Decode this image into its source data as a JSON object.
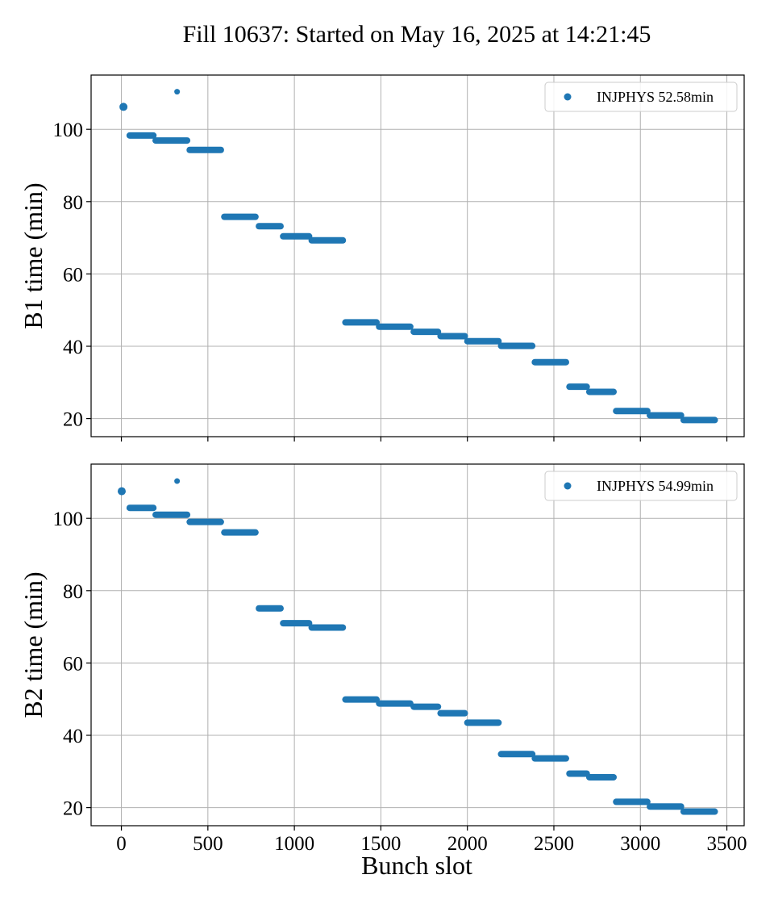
{
  "title": "Fill 10637: Started on May 16, 2025 at 14:21:45",
  "xlabel": "Bunch slot",
  "colors": {
    "series": "#1f77b4",
    "grid": "#b0b0b0",
    "axes": "#000000"
  },
  "chart_data": [
    {
      "type": "scatter",
      "ylabel": "B1 time (min)",
      "legend": "INJPHYS 52.58min",
      "legend_position": "top-right",
      "grid": true,
      "xlim": [
        -175,
        3600
      ],
      "ylim": [
        15,
        115
      ],
      "xticks": [
        0,
        500,
        1000,
        1500,
        2000,
        2500,
        3000,
        3500
      ],
      "yticks": [
        20,
        40,
        60,
        80,
        100
      ],
      "single_points": [
        {
          "x": 12,
          "y": 106.2
        },
        {
          "x": 322,
          "y": 110.4
        }
      ],
      "segments": [
        {
          "x0": 48,
          "x1": 185,
          "y": 98.3
        },
        {
          "x0": 198,
          "x1": 380,
          "y": 96.9
        },
        {
          "x0": 395,
          "x1": 575,
          "y": 94.3
        },
        {
          "x0": 595,
          "x1": 775,
          "y": 75.8
        },
        {
          "x0": 795,
          "x1": 920,
          "y": 73.2
        },
        {
          "x0": 935,
          "x1": 1085,
          "y": 70.4
        },
        {
          "x0": 1100,
          "x1": 1280,
          "y": 69.3
        },
        {
          "x0": 1295,
          "x1": 1475,
          "y": 46.6
        },
        {
          "x0": 1490,
          "x1": 1670,
          "y": 45.4
        },
        {
          "x0": 1690,
          "x1": 1830,
          "y": 44.0
        },
        {
          "x0": 1845,
          "x1": 1985,
          "y": 42.8
        },
        {
          "x0": 2000,
          "x1": 2180,
          "y": 41.4
        },
        {
          "x0": 2195,
          "x1": 2375,
          "y": 40.1
        },
        {
          "x0": 2390,
          "x1": 2570,
          "y": 35.6
        },
        {
          "x0": 2590,
          "x1": 2690,
          "y": 28.8
        },
        {
          "x0": 2705,
          "x1": 2845,
          "y": 27.4
        },
        {
          "x0": 2860,
          "x1": 3040,
          "y": 22.1
        },
        {
          "x0": 3055,
          "x1": 3235,
          "y": 20.9
        },
        {
          "x0": 3250,
          "x1": 3430,
          "y": 19.6
        }
      ]
    },
    {
      "type": "scatter",
      "ylabel": "B2 time (min)",
      "legend": "INJPHYS 54.99min",
      "legend_position": "top-right",
      "grid": true,
      "xlim": [
        -175,
        3600
      ],
      "ylim": [
        15,
        115
      ],
      "xticks": [
        0,
        500,
        1000,
        1500,
        2000,
        2500,
        3000,
        3500
      ],
      "yticks": [
        20,
        40,
        60,
        80,
        100
      ],
      "single_points": [
        {
          "x": 2,
          "y": 107.5
        },
        {
          "x": 322,
          "y": 110.3
        }
      ],
      "segments": [
        {
          "x0": 48,
          "x1": 185,
          "y": 102.9
        },
        {
          "x0": 198,
          "x1": 380,
          "y": 101.0
        },
        {
          "x0": 395,
          "x1": 575,
          "y": 99.0
        },
        {
          "x0": 595,
          "x1": 775,
          "y": 96.1
        },
        {
          "x0": 795,
          "x1": 920,
          "y": 75.1
        },
        {
          "x0": 935,
          "x1": 1085,
          "y": 71.0
        },
        {
          "x0": 1100,
          "x1": 1280,
          "y": 69.8
        },
        {
          "x0": 1295,
          "x1": 1475,
          "y": 49.9
        },
        {
          "x0": 1490,
          "x1": 1670,
          "y": 48.8
        },
        {
          "x0": 1690,
          "x1": 1830,
          "y": 47.9
        },
        {
          "x0": 1845,
          "x1": 1985,
          "y": 46.1
        },
        {
          "x0": 2000,
          "x1": 2180,
          "y": 43.5
        },
        {
          "x0": 2195,
          "x1": 2375,
          "y": 34.8
        },
        {
          "x0": 2390,
          "x1": 2570,
          "y": 33.6
        },
        {
          "x0": 2590,
          "x1": 2690,
          "y": 29.4
        },
        {
          "x0": 2705,
          "x1": 2845,
          "y": 28.4
        },
        {
          "x0": 2860,
          "x1": 3040,
          "y": 21.6
        },
        {
          "x0": 3055,
          "x1": 3235,
          "y": 20.3
        },
        {
          "x0": 3250,
          "x1": 3430,
          "y": 18.9
        }
      ]
    }
  ]
}
